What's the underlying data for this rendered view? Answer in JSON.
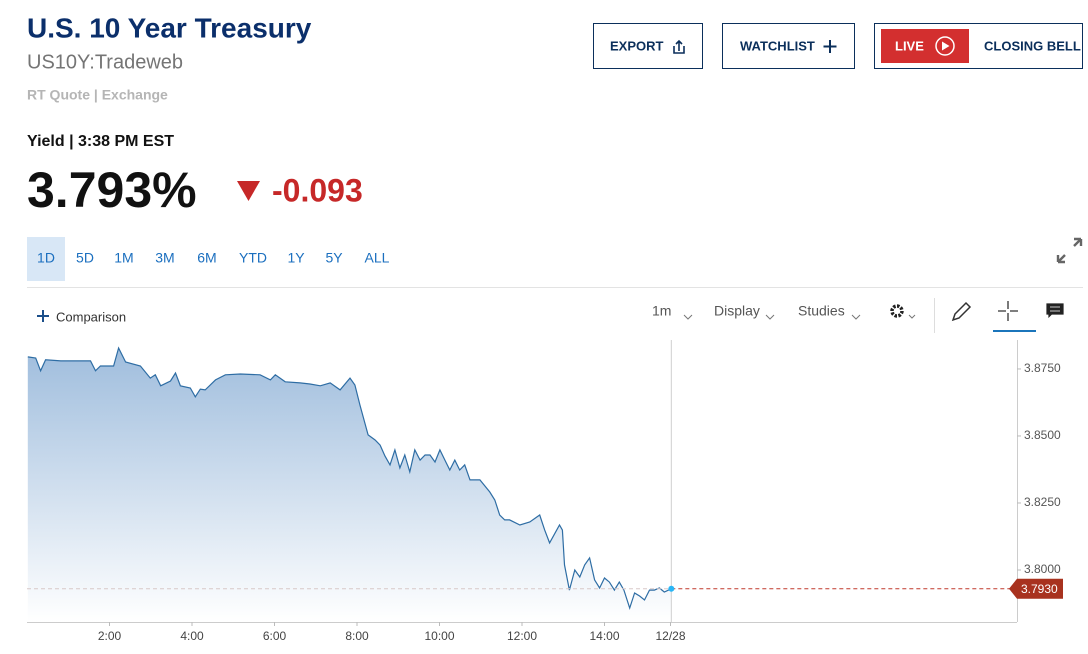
{
  "header": {
    "title": "U.S. 10 Year Treasury",
    "symbol": "US10Y:Tradeweb",
    "source": "RT Quote | Exchange",
    "yield_time": "Yield | 3:38 PM EST",
    "price": "3.793%",
    "change": "-0.093"
  },
  "buttons": {
    "export": "EXPORT",
    "watchlist": "WATCHLIST",
    "live": "LIVE",
    "closing_bell": "CLOSING BELL"
  },
  "ranges": [
    "1D",
    "5D",
    "1M",
    "3M",
    "6M",
    "YTD",
    "1Y",
    "5Y",
    "ALL"
  ],
  "toolbar": {
    "comparison": "Comparison",
    "interval": "1m",
    "display": "Display",
    "studies": "Studies"
  },
  "chart_data": {
    "type": "area",
    "series": [
      {
        "name": "US10Y",
        "color": "#2e6da4",
        "x": [
          0.02,
          0.21,
          0.33,
          0.45,
          0.82,
          1.54,
          1.66,
          1.78,
          2.1,
          2.22,
          2.39,
          2.75,
          2.99,
          3.11,
          3.24,
          3.48,
          3.6,
          3.72,
          3.96,
          4.08,
          4.2,
          4.32,
          4.57,
          4.81,
          5.17,
          5.65,
          5.9,
          6.02,
          6.26,
          6.62,
          6.86,
          7.11,
          7.35,
          7.59,
          7.83,
          7.95,
          8.07,
          8.27,
          8.44,
          8.56,
          8.68,
          8.8,
          8.92,
          9.04,
          9.16,
          9.28,
          9.4,
          9.53,
          9.65,
          9.77,
          9.89,
          10.01,
          10.13,
          10.25,
          10.37,
          10.49,
          10.61,
          10.74,
          10.98,
          11.22,
          11.34,
          11.46,
          11.58,
          11.7,
          11.95,
          12.19,
          12.43,
          12.55,
          12.67,
          12.91,
          12.98,
          13.03,
          13.15,
          13.28,
          13.4,
          13.52,
          13.64,
          13.76,
          13.88,
          14.0,
          14.12,
          14.24,
          14.36,
          14.47,
          14.61,
          14.73,
          14.85,
          14.97,
          15.09,
          15.21,
          15.33,
          15.45,
          15.62
        ],
        "values": [
          3.8795,
          3.8791,
          3.8743,
          3.8784,
          3.878,
          3.878,
          3.8743,
          3.8761,
          3.8761,
          3.8828,
          3.8776,
          3.8761,
          3.8716,
          3.8728,
          3.8687,
          3.8705,
          3.8735,
          3.8687,
          3.8679,
          3.8646,
          3.8675,
          3.8672,
          3.8709,
          3.8728,
          3.8731,
          3.8728,
          3.8709,
          3.8728,
          3.8702,
          3.8698,
          3.8694,
          3.8687,
          3.8698,
          3.8672,
          3.8716,
          3.869,
          3.8616,
          3.8504,
          3.8485,
          3.8466,
          3.8425,
          3.8392,
          3.8448,
          3.8381,
          3.8429,
          3.8366,
          3.8448,
          3.841,
          3.8429,
          3.8429,
          3.8403,
          3.8448,
          3.841,
          3.8373,
          3.841,
          3.8373,
          3.8392,
          3.8336,
          3.8336,
          3.8291,
          3.8261,
          3.8205,
          3.8187,
          3.8187,
          3.8168,
          3.8179,
          3.8205,
          3.8149,
          3.8101,
          3.8168,
          3.8149,
          3.8019,
          3.7925,
          3.8,
          3.7974,
          3.8019,
          3.8045,
          3.7963,
          3.7933,
          3.797,
          3.7955,
          3.7925,
          3.7955,
          3.7925,
          3.7858,
          3.7914,
          3.7903,
          3.7888,
          3.7925,
          3.7925,
          3.7933,
          3.7918,
          3.793
        ]
      }
    ],
    "xlim": [
      0,
      24
    ],
    "xticks": [
      {
        "value": 2,
        "label": "2:00"
      },
      {
        "value": 4,
        "label": "4:00"
      },
      {
        "value": 6,
        "label": "6:00"
      },
      {
        "value": 8,
        "label": "8:00"
      },
      {
        "value": 10,
        "label": "10:00"
      },
      {
        "value": 12,
        "label": "12:00"
      },
      {
        "value": 14,
        "label": "14:00"
      },
      {
        "value": 15.6,
        "label": "12/28"
      }
    ],
    "ylim": [
      3.7806,
      3.8858
    ],
    "yticks": [
      {
        "value": 3.8,
        "label": "3.8000"
      },
      {
        "value": 3.825,
        "label": "3.8250"
      },
      {
        "value": 3.85,
        "label": "3.8500"
      },
      {
        "value": 3.875,
        "label": "3.8750"
      }
    ],
    "last_price": {
      "value": 3.793,
      "label": "3.7930"
    }
  }
}
